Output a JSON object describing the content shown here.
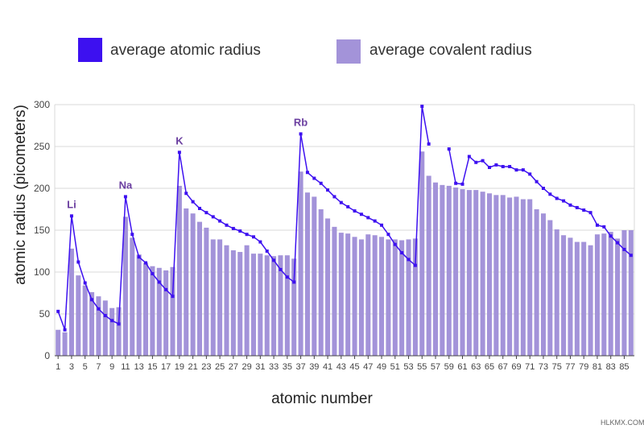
{
  "chart_data": {
    "type": "bar",
    "xlabel": "atomic number",
    "ylabel": "atomic radius (picometers)",
    "ylim": [
      0,
      300
    ],
    "yticks": [
      0,
      50,
      100,
      150,
      200,
      250,
      300
    ],
    "grid": true,
    "legend_position": "top",
    "x": [
      1,
      2,
      3,
      4,
      5,
      6,
      7,
      8,
      9,
      10,
      11,
      12,
      13,
      14,
      15,
      16,
      17,
      18,
      19,
      20,
      21,
      22,
      23,
      24,
      25,
      26,
      27,
      28,
      29,
      30,
      31,
      32,
      33,
      34,
      35,
      36,
      37,
      38,
      39,
      40,
      41,
      42,
      43,
      44,
      45,
      46,
      47,
      48,
      49,
      50,
      51,
      52,
      53,
      54,
      55,
      56,
      57,
      58,
      59,
      60,
      61,
      62,
      63,
      64,
      65,
      66,
      67,
      68,
      69,
      70,
      71,
      72,
      73,
      74,
      75,
      76,
      77,
      78,
      79,
      80,
      81,
      82,
      83,
      84,
      85,
      86
    ],
    "xtick_labels": [
      "1",
      "3",
      "5",
      "7",
      "9",
      "11",
      "13",
      "15",
      "17",
      "19",
      "21",
      "23",
      "25",
      "27",
      "29",
      "31",
      "33",
      "35",
      "37",
      "39",
      "41",
      "43",
      "45",
      "47",
      "49",
      "51",
      "53",
      "55",
      "57",
      "59",
      "61",
      "63",
      "65",
      "67",
      "69",
      "71",
      "73",
      "75",
      "77",
      "79",
      "81",
      "83",
      "85"
    ],
    "series": [
      {
        "name": "average atomic radius",
        "kind": "line",
        "color": "#3d10f0",
        "values": [
          53,
          31,
          167,
          112,
          87,
          67,
          56,
          48,
          42,
          38,
          190,
          145,
          118,
          111,
          98,
          88,
          79,
          71,
          243,
          194,
          184,
          176,
          171,
          166,
          161,
          156,
          152,
          149,
          145,
          142,
          136,
          125,
          114,
          103,
          94,
          88,
          265,
          219,
          212,
          206,
          198,
          190,
          183,
          178,
          173,
          169,
          165,
          161,
          156,
          145,
          133,
          123,
          115,
          108,
          298,
          253,
          null,
          null,
          247,
          206,
          205,
          238,
          231,
          233,
          225,
          228,
          226,
          226,
          222,
          222,
          217,
          208,
          200,
          193,
          188,
          185,
          180,
          177,
          174,
          171,
          156,
          154,
          143,
          135,
          127,
          120
        ]
      },
      {
        "name": "average covalent radius",
        "kind": "bar",
        "color": "#a393d9",
        "values": [
          31,
          28,
          128,
          96,
          84,
          76,
          71,
          66,
          57,
          58,
          166,
          141,
          121,
          111,
          107,
          105,
          102,
          106,
          203,
          176,
          170,
          160,
          153,
          139,
          139,
          132,
          126,
          124,
          132,
          122,
          122,
          120,
          119,
          120,
          120,
          116,
          220,
          195,
          190,
          175,
          164,
          154,
          147,
          146,
          142,
          139,
          145,
          144,
          142,
          139,
          139,
          138,
          139,
          140,
          244,
          215,
          207,
          204,
          203,
          201,
          199,
          198,
          198,
          196,
          194,
          192,
          192,
          189,
          190,
          187,
          187,
          175,
          170,
          162,
          151,
          144,
          141,
          136,
          136,
          132,
          145,
          146,
          148,
          140,
          150,
          150
        ]
      }
    ],
    "annotations": [
      {
        "text": "Li",
        "x": 3,
        "y": 167
      },
      {
        "text": "Na",
        "x": 11,
        "y": 190
      },
      {
        "text": "K",
        "x": 19,
        "y": 243
      },
      {
        "text": "Rb",
        "x": 37,
        "y": 265
      }
    ]
  },
  "legend": {
    "atomic": {
      "label": "average atomic radius",
      "color": "#3d10f0"
    },
    "covalent": {
      "label": "average covalent radius",
      "color": "#a393d9"
    }
  },
  "watermark": "HLKMX.COM"
}
